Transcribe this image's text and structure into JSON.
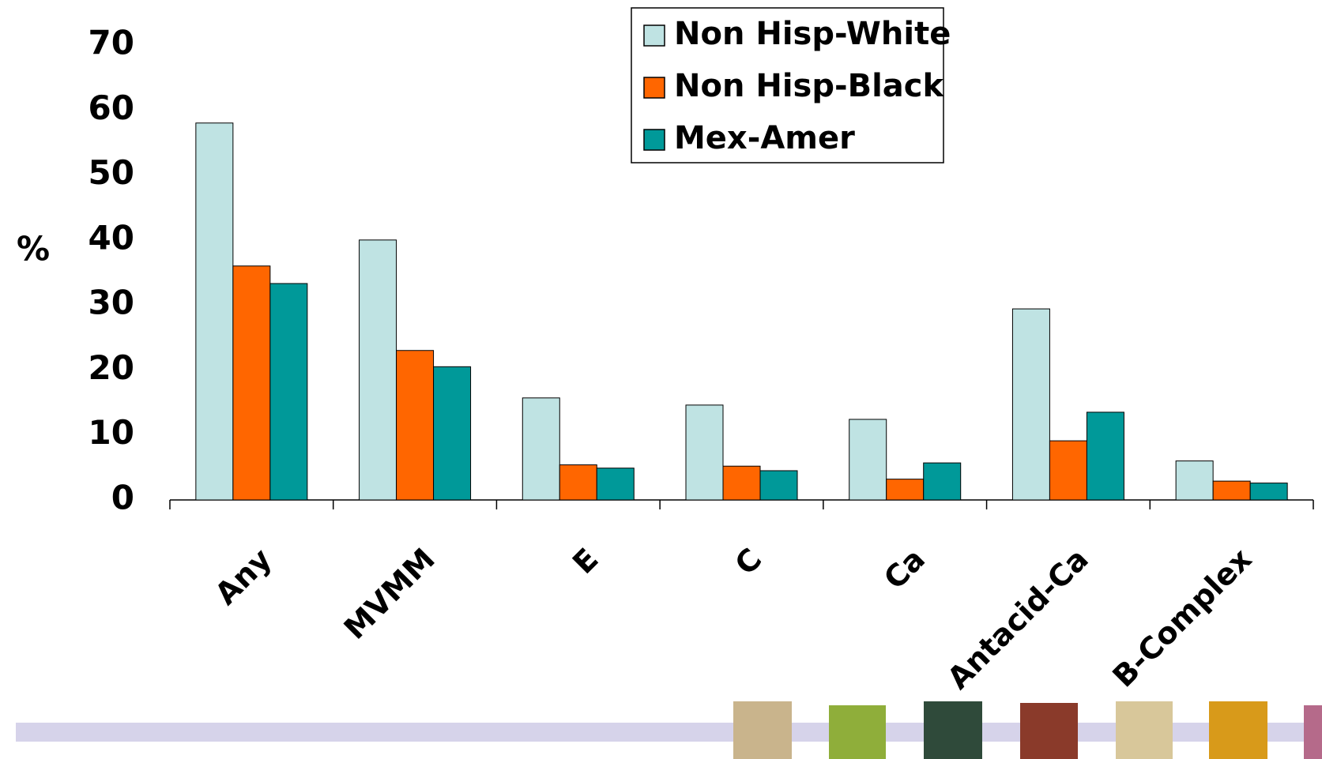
{
  "chart_data": {
    "type": "bar",
    "y_label": "%",
    "categories": [
      "Any",
      "MVMM",
      "E",
      "C",
      "Ca",
      "Antacid-Ca",
      "B-Complex"
    ],
    "series": [
      {
        "name": "Non Hisp-White",
        "color": "#bfe3e3",
        "values": [
          58,
          40,
          15.7,
          14.6,
          12.4,
          29.4,
          6
        ]
      },
      {
        "name": "Non Hisp-Black",
        "color": "#ff6600",
        "values": [
          36,
          23,
          5.4,
          5.2,
          3.2,
          9.1,
          2.9
        ]
      },
      {
        "name": "Mex-Amer",
        "color": "#009999",
        "values": [
          33.3,
          20.5,
          4.9,
          4.5,
          5.7,
          13.5,
          2.6
        ]
      }
    ],
    "ylim": [
      0,
      70
    ],
    "yticks": [
      0,
      10,
      20,
      30,
      40,
      50,
      60,
      70
    ],
    "legend": "top-right"
  }
}
